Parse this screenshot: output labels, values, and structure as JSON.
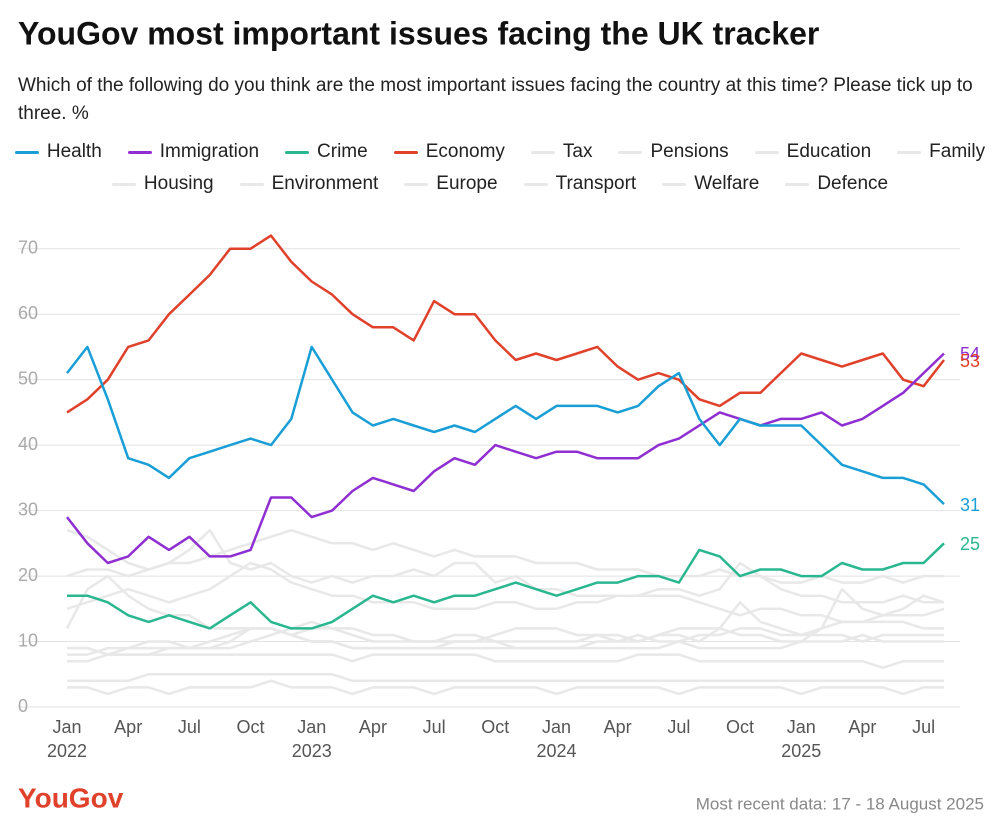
{
  "chart_data": {
    "type": "line",
    "title": "YouGov most important issues facing the UK tracker",
    "subtitle": "Which of the following do you think are the most important issues facing the country at this time? Please tick up to three. %",
    "source": "Most recent data: 17 - 18 August 2025",
    "brand": "YouGov",
    "x": [
      "2022-01",
      "2022-02",
      "2022-03",
      "2022-04",
      "2022-05",
      "2022-06",
      "2022-07",
      "2022-08",
      "2022-09",
      "2022-10",
      "2022-11",
      "2022-12",
      "2023-01",
      "2023-02",
      "2023-03",
      "2023-04",
      "2023-05",
      "2023-06",
      "2023-07",
      "2023-08",
      "2023-09",
      "2023-10",
      "2023-11",
      "2023-12",
      "2024-01",
      "2024-02",
      "2024-03",
      "2024-04",
      "2024-05",
      "2024-06",
      "2024-07",
      "2024-08",
      "2024-09",
      "2024-10",
      "2024-11",
      "2024-12",
      "2025-01",
      "2025-02",
      "2025-03",
      "2025-04",
      "2025-05",
      "2025-06",
      "2025-07",
      "2025-08"
    ],
    "xlim": [
      "2022-01",
      "2025-08"
    ],
    "xticks": [
      {
        "value": "2022-01",
        "label": "Jan"
      },
      {
        "value": "2022-04",
        "label": "Apr"
      },
      {
        "value": "2022-07",
        "label": "Jul"
      },
      {
        "value": "2022-10",
        "label": "Oct"
      },
      {
        "value": "2023-01",
        "label": "Jan"
      },
      {
        "value": "2023-04",
        "label": "Apr"
      },
      {
        "value": "2023-07",
        "label": "Jul"
      },
      {
        "value": "2023-10",
        "label": "Oct"
      },
      {
        "value": "2024-01",
        "label": "Jan"
      },
      {
        "value": "2024-04",
        "label": "Apr"
      },
      {
        "value": "2024-07",
        "label": "Jul"
      },
      {
        "value": "2024-10",
        "label": "Oct"
      },
      {
        "value": "2025-01",
        "label": "Jan"
      },
      {
        "value": "2025-04",
        "label": "Apr"
      },
      {
        "value": "2025-07",
        "label": "Jul"
      }
    ],
    "xtick_years": [
      {
        "value": "2022-01",
        "label": "2022"
      },
      {
        "value": "2023-01",
        "label": "2023"
      },
      {
        "value": "2024-01",
        "label": "2024"
      },
      {
        "value": "2025-01",
        "label": "2025"
      }
    ],
    "ylim": [
      0,
      75
    ],
    "yticks": [
      0,
      10,
      20,
      30,
      40,
      50,
      60,
      70
    ],
    "grid": true,
    "end_labels": true,
    "series": [
      {
        "name": "Health",
        "color": "#1a9ed6",
        "values": [
          51,
          55,
          47,
          38,
          37,
          35,
          38,
          39,
          40,
          41,
          40,
          44,
          55,
          50,
          45,
          43,
          44,
          43,
          42,
          43,
          42,
          44,
          46,
          44,
          46,
          46,
          46,
          45,
          46,
          49,
          51,
          44,
          40,
          44,
          43,
          43,
          43,
          40,
          37,
          36,
          35,
          35,
          34,
          31
        ]
      },
      {
        "name": "Immigration",
        "color": "#8f2fd1",
        "values": [
          29,
          25,
          22,
          23,
          26,
          24,
          26,
          23,
          23,
          24,
          32,
          32,
          29,
          30,
          33,
          35,
          34,
          33,
          36,
          38,
          37,
          40,
          39,
          38,
          39,
          39,
          38,
          38,
          38,
          40,
          41,
          43,
          45,
          44,
          43,
          44,
          44,
          45,
          43,
          44,
          46,
          48,
          51,
          54
        ]
      },
      {
        "name": "Crime",
        "color": "#2ab790",
        "values": [
          17,
          17,
          16,
          14,
          13,
          14,
          13,
          12,
          14,
          16,
          13,
          12,
          12,
          13,
          15,
          17,
          16,
          17,
          16,
          17,
          17,
          18,
          19,
          18,
          17,
          18,
          19,
          19,
          20,
          20,
          19,
          24,
          23,
          20,
          21,
          21,
          20,
          20,
          22,
          21,
          21,
          22,
          22,
          25
        ]
      },
      {
        "name": "Economy",
        "color": "#e0412b",
        "values": [
          45,
          47,
          50,
          55,
          56,
          60,
          63,
          66,
          70,
          70,
          72,
          68,
          65,
          63,
          60,
          58,
          58,
          56,
          62,
          60,
          60,
          56,
          53,
          54,
          53,
          54,
          55,
          52,
          50,
          51,
          50,
          47,
          46,
          48,
          48,
          51,
          54,
          53,
          52,
          53,
          54,
          50,
          49,
          53
        ]
      },
      {
        "name": "Tax",
        "color": "#e8e8e8",
        "values": [
          15,
          16,
          17,
          18,
          17,
          16,
          17,
          18,
          20,
          22,
          21,
          19,
          18,
          17,
          17,
          16,
          16,
          16,
          15,
          15,
          15,
          16,
          16,
          15,
          15,
          16,
          16,
          17,
          17,
          18,
          18,
          17,
          18,
          22,
          20,
          18,
          17,
          17,
          16,
          16,
          16,
          17,
          16,
          16
        ]
      },
      {
        "name": "Pensions",
        "color": "#e8e8e8",
        "values": [
          8,
          8,
          9,
          9,
          10,
          10,
          9,
          9,
          10,
          12,
          12,
          11,
          10,
          10,
          9,
          9,
          9,
          9,
          9,
          10,
          10,
          10,
          9,
          9,
          9,
          9,
          10,
          10,
          10,
          11,
          11,
          10,
          12,
          16,
          13,
          12,
          11,
          11,
          11,
          10,
          11,
          11,
          11,
          11
        ]
      },
      {
        "name": "Education",
        "color": "#e8e8e8",
        "values": [
          9,
          9,
          8,
          8,
          8,
          9,
          9,
          9,
          9,
          10,
          11,
          12,
          13,
          12,
          12,
          11,
          11,
          10,
          10,
          11,
          11,
          10,
          10,
          10,
          10,
          10,
          11,
          11,
          10,
          11,
          12,
          12,
          12,
          11,
          11,
          10,
          10,
          10,
          10,
          11,
          10,
          10,
          10,
          10
        ]
      },
      {
        "name": "Family",
        "color": "#e8e8e8",
        "values": [
          3,
          3,
          2,
          3,
          3,
          2,
          3,
          3,
          3,
          3,
          4,
          3,
          3,
          3,
          2,
          3,
          3,
          3,
          2,
          3,
          3,
          3,
          3,
          3,
          2,
          3,
          3,
          3,
          3,
          3,
          2,
          3,
          3,
          3,
          3,
          3,
          2,
          3,
          3,
          3,
          3,
          2,
          3,
          3
        ]
      },
      {
        "name": "Housing",
        "color": "#e8e8e8",
        "values": [
          20,
          21,
          21,
          20,
          21,
          22,
          22,
          23,
          24,
          25,
          26,
          27,
          26,
          25,
          25,
          24,
          25,
          24,
          23,
          24,
          23,
          23,
          23,
          22,
          22,
          22,
          21,
          21,
          21,
          20,
          20,
          20,
          21,
          20,
          20,
          19,
          19,
          20,
          19,
          19,
          20,
          19,
          20,
          20
        ]
      },
      {
        "name": "Environment",
        "color": "#e8e8e8",
        "values": [
          27,
          26,
          24,
          22,
          21,
          22,
          24,
          27,
          22,
          21,
          22,
          20,
          19,
          20,
          19,
          20,
          20,
          21,
          20,
          22,
          22,
          19,
          20,
          18,
          18,
          17,
          17,
          17,
          17,
          17,
          17,
          16,
          15,
          14,
          15,
          15,
          14,
          14,
          13,
          13,
          14,
          14,
          14,
          15
        ]
      },
      {
        "name": "Europe",
        "color": "#e8e8e8",
        "values": [
          9,
          9,
          8,
          8,
          8,
          8,
          8,
          8,
          8,
          8,
          8,
          8,
          8,
          8,
          7,
          8,
          8,
          8,
          8,
          8,
          8,
          7,
          7,
          7,
          7,
          7,
          7,
          7,
          8,
          8,
          8,
          7,
          7,
          7,
          7,
          7,
          7,
          7,
          7,
          7,
          6,
          7,
          7,
          7
        ]
      },
      {
        "name": "Transport",
        "color": "#e8e8e8",
        "values": [
          4,
          4,
          4,
          4,
          5,
          5,
          5,
          5,
          5,
          5,
          5,
          5,
          5,
          5,
          4,
          4,
          4,
          4,
          4,
          4,
          4,
          4,
          4,
          4,
          4,
          4,
          4,
          4,
          4,
          4,
          4,
          4,
          4,
          4,
          4,
          4,
          4,
          4,
          4,
          4,
          4,
          4,
          4,
          4
        ]
      },
      {
        "name": "Welfare",
        "color": "#e8e8e8",
        "values": [
          7,
          7,
          8,
          9,
          9,
          9,
          9,
          10,
          11,
          12,
          12,
          11,
          10,
          10,
          9,
          9,
          9,
          9,
          9,
          9,
          9,
          9,
          9,
          9,
          9,
          9,
          9,
          9,
          9,
          9,
          10,
          11,
          11,
          12,
          12,
          11,
          11,
          12,
          13,
          13,
          13,
          13,
          12,
          12
        ]
      },
      {
        "name": "Defence",
        "color": "#e8e8e8",
        "values": [
          12,
          18,
          20,
          17,
          15,
          14,
          14,
          12,
          12,
          12,
          12,
          11,
          12,
          12,
          11,
          10,
          10,
          10,
          10,
          10,
          10,
          11,
          12,
          12,
          12,
          11,
          11,
          10,
          11,
          10,
          10,
          9,
          9,
          9,
          9,
          9,
          10,
          12,
          18,
          15,
          14,
          15,
          17,
          16
        ]
      }
    ]
  }
}
